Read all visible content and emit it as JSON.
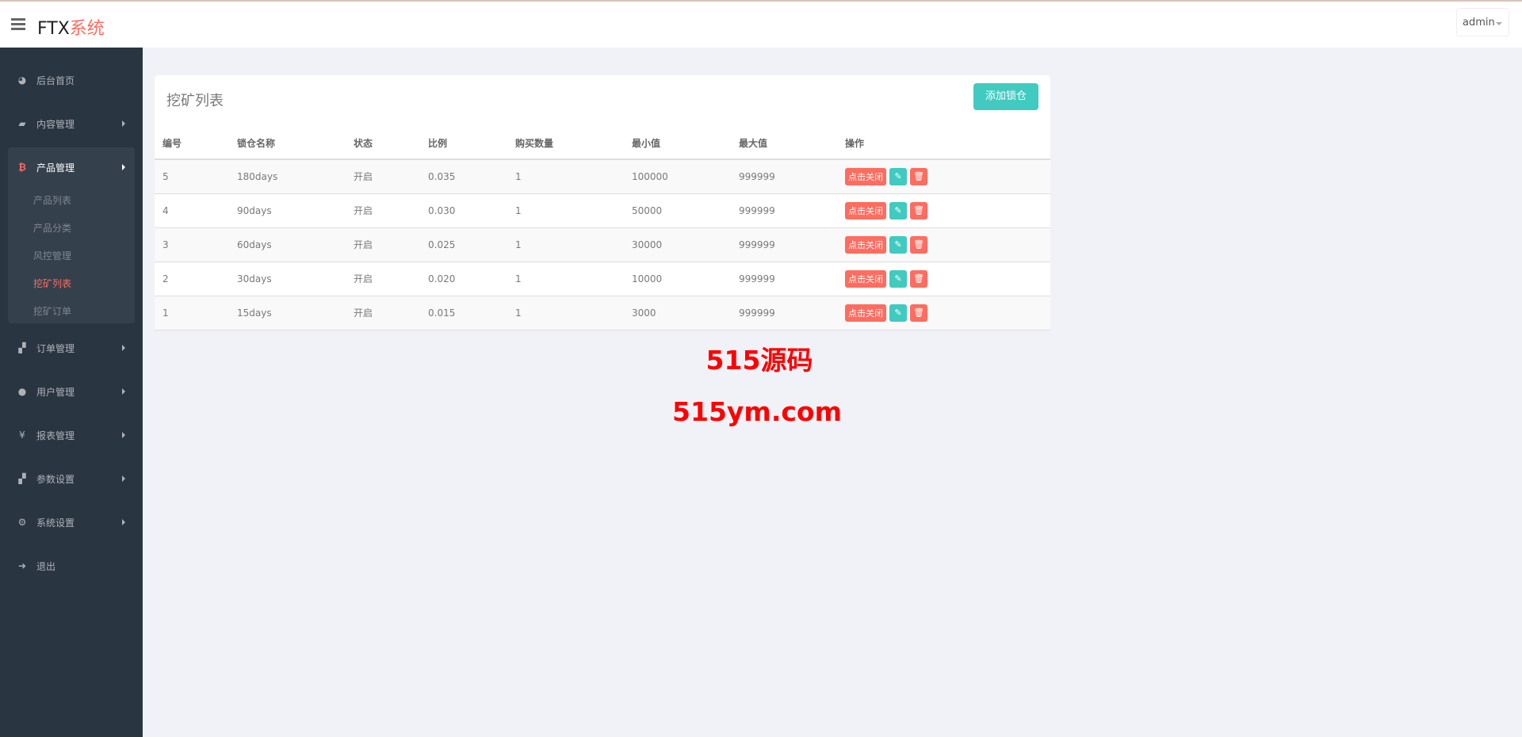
{
  "header": {
    "logo_main": "FTX",
    "logo_accent": "系统",
    "user": "admin"
  },
  "sidebar": {
    "items": [
      {
        "label": "后台首页",
        "icon": "dashboard-icon"
      },
      {
        "label": "内容管理",
        "icon": "book-icon"
      },
      {
        "label": "产品管理",
        "icon": "bitcoin-icon"
      },
      {
        "label": "订单管理",
        "icon": "files-icon"
      },
      {
        "label": "用户管理",
        "icon": "user-icon"
      },
      {
        "label": "报表管理",
        "icon": "yen-icon"
      },
      {
        "label": "参数设置",
        "icon": "files-icon"
      },
      {
        "label": "系统设置",
        "icon": "cogs-icon"
      },
      {
        "label": "退出",
        "icon": "sign-out-icon"
      }
    ],
    "sub_items": [
      "产品列表",
      "产品分类",
      "风控管理",
      "挖矿列表",
      "挖矿订单"
    ]
  },
  "main": {
    "title": "挖矿列表",
    "add_button": "添加锁仓",
    "columns": [
      "编号",
      "锁仓名称",
      "状态",
      "比例",
      "购买数量",
      "最小值",
      "最大值",
      "操作"
    ],
    "rows": [
      [
        "5",
        "180days",
        "开启",
        "0.035",
        "1",
        "100000",
        "999999"
      ],
      [
        "4",
        "90days",
        "开启",
        "0.030",
        "1",
        "50000",
        "999999"
      ],
      [
        "3",
        "60days",
        "开启",
        "0.025",
        "1",
        "30000",
        "999999"
      ],
      [
        "2",
        "30days",
        "开启",
        "0.020",
        "1",
        "10000",
        "999999"
      ],
      [
        "1",
        "15days",
        "开启",
        "0.015",
        "1",
        "3000",
        "999999"
      ]
    ],
    "row_action": "点击关闭"
  },
  "watermark": {
    "line1": "515源码",
    "line2": "515ym.com"
  },
  "colors": {
    "accent": "#ff6c60",
    "teal": "#41cac0",
    "sidebar": "#2a3542"
  }
}
